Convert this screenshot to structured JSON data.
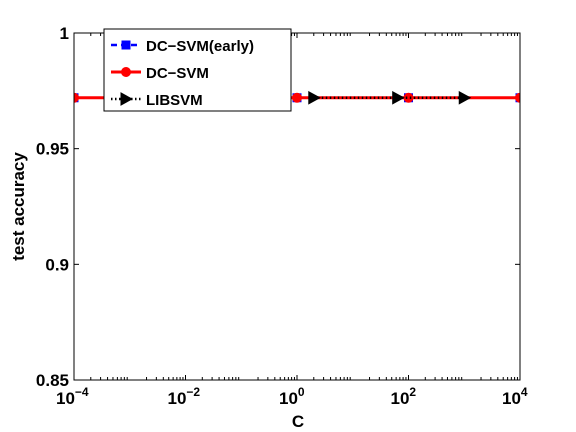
{
  "chart_data": {
    "type": "line",
    "xlabel": "C",
    "ylabel": "test accuracy",
    "xscale": "log",
    "xlim": [
      0.0001,
      10000
    ],
    "ylim": [
      0.85,
      1
    ],
    "x_ticks": [
      {
        "value": 0.0001,
        "base": "10",
        "exp": "−4"
      },
      {
        "value": 0.01,
        "base": "10",
        "exp": "−2"
      },
      {
        "value": 1,
        "base": "10",
        "exp": "0"
      },
      {
        "value": 100,
        "base": "10",
        "exp": "2"
      },
      {
        "value": 10000,
        "base": "10",
        "exp": "4"
      }
    ],
    "y_ticks": [
      {
        "value": 0.85,
        "label": "0.85"
      },
      {
        "value": 0.9,
        "label": "0.9"
      },
      {
        "value": 0.95,
        "label": "0.95"
      },
      {
        "value": 1,
        "label": "1"
      }
    ],
    "legend_position": "top-left",
    "series": [
      {
        "name": "DC−SVM(early)",
        "color": "#0000ff",
        "style": "dashed",
        "marker": "square",
        "x": [
          0.0001,
          0.01,
          1,
          100,
          10000
        ],
        "y": [
          0.972,
          0.972,
          0.972,
          0.972,
          0.972
        ]
      },
      {
        "name": "DC−SVM",
        "color": "#ff0000",
        "style": "solid",
        "marker": "circle",
        "x": [
          0.0001,
          0.01,
          1,
          100,
          10000
        ],
        "y": [
          0.972,
          0.972,
          0.972,
          0.972,
          0.972
        ]
      },
      {
        "name": "LIBSVM",
        "color": "#000000",
        "style": "dotted",
        "marker": "triangle-right",
        "x": [
          2,
          64,
          1000
        ],
        "y": [
          0.972,
          0.972,
          0.972
        ]
      }
    ]
  }
}
